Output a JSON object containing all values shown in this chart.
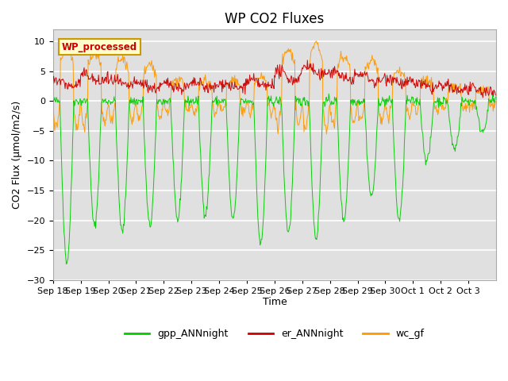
{
  "title": "WP CO2 Fluxes",
  "xlabel": "Time",
  "ylabel": "CO2 Flux (μmol/m2/s)",
  "ylim": [
    -30,
    12
  ],
  "yticks": [
    -30,
    -25,
    -20,
    -15,
    -10,
    -5,
    0,
    5,
    10
  ],
  "plot_bg_color": "#e0e0e0",
  "legend_labels": [
    "gpp_ANNnight",
    "er_ANNnight",
    "wc_gf"
  ],
  "line_colors": {
    "gpp": "#00cc00",
    "er": "#cc0000",
    "wc": "#ff9900"
  },
  "annotation_text": "WP_processed",
  "annotation_color": "#cc0000",
  "annotation_bg": "#ffffcc",
  "annotation_border": "#cc9900",
  "n_days": 16,
  "points_per_day": 48,
  "grid_color": "white",
  "title_fontsize": 12,
  "axis_label_fontsize": 9,
  "tick_fontsize": 8,
  "tick_labels": [
    "Sep 18",
    "Sep 19",
    "Sep 20",
    "Sep 21",
    "Sep 22",
    "Sep 23",
    "Sep 24",
    "Sep 25",
    "Sep 26",
    "Sep 27",
    "Sep 28",
    "Sep 29",
    "Sep 30",
    "Oct 1",
    "Oct 2",
    "Oct 3"
  ]
}
